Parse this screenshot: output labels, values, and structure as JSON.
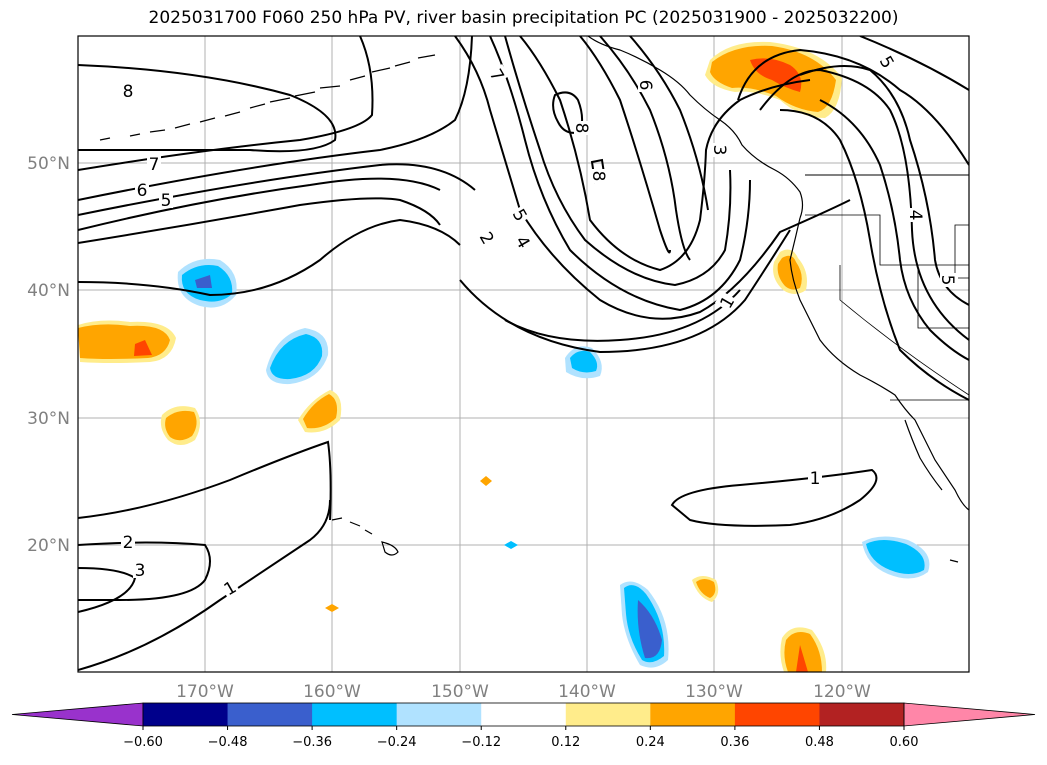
{
  "title": "2025031700 F060 250 hPa PV, river basin precipitation PC (2025031900 - 2025032200)",
  "map": {
    "lat_ticks": [
      "50°N",
      "40°N",
      "30°N",
      "20°N"
    ],
    "lon_ticks": [
      "170°W",
      "160°W",
      "150°W",
      "140°W",
      "130°W",
      "120°W"
    ],
    "gridline_color": "#b0b0b0",
    "contour_color": "#000000",
    "contour_labels": [
      {
        "text": "8",
        "id": "pv-8-west"
      },
      {
        "text": "7",
        "id": "pv-7-west"
      },
      {
        "text": "6",
        "id": "pv-6-west"
      },
      {
        "text": "5",
        "id": "pv-5-west"
      },
      {
        "text": "7",
        "id": "pv-7-ridge"
      },
      {
        "text": "8",
        "id": "pv-8-closed-a"
      },
      {
        "text": "8",
        "id": "pv-8-closed-b"
      },
      {
        "text": "6",
        "id": "pv-6-coast"
      },
      {
        "text": "5",
        "id": "pv-5-trough"
      },
      {
        "text": "4",
        "id": "pv-4-trough"
      },
      {
        "text": "2",
        "id": "pv-2-trough"
      },
      {
        "text": "3",
        "id": "pv-3-coast"
      },
      {
        "text": "1",
        "id": "pv-1-trough"
      },
      {
        "text": "5",
        "id": "pv-5-east"
      },
      {
        "text": "4",
        "id": "pv-4-east"
      },
      {
        "text": "5",
        "id": "pv-5-east-b"
      },
      {
        "text": "1",
        "id": "pv-1-subtropic"
      },
      {
        "text": "2",
        "id": "pv-2-southwest"
      },
      {
        "text": "3",
        "id": "pv-3-southwest"
      },
      {
        "text": "1",
        "id": "pv-1-southwest"
      }
    ]
  },
  "colorbar": {
    "colors": [
      "#9932cc",
      "#00008b",
      "#3a5fcd",
      "#00bfff",
      "#b0e2ff",
      "#ffffff",
      "#ffec8b",
      "#ffa500",
      "#ff4500",
      "#b22222",
      "#ff86a8"
    ],
    "tick_labels": [
      "−0.60",
      "−0.48",
      "−0.36",
      "−0.24",
      "−0.12",
      "0.12",
      "0.24",
      "0.36",
      "0.48",
      "0.60"
    ]
  },
  "precip_pc_colors": {
    "orange": "#ffa500",
    "yellow": "#ffec8b",
    "red": "#ff4500",
    "cyan": "#00bfff",
    "lightblue": "#b0e2ff",
    "blue": "#3a5fcd"
  }
}
